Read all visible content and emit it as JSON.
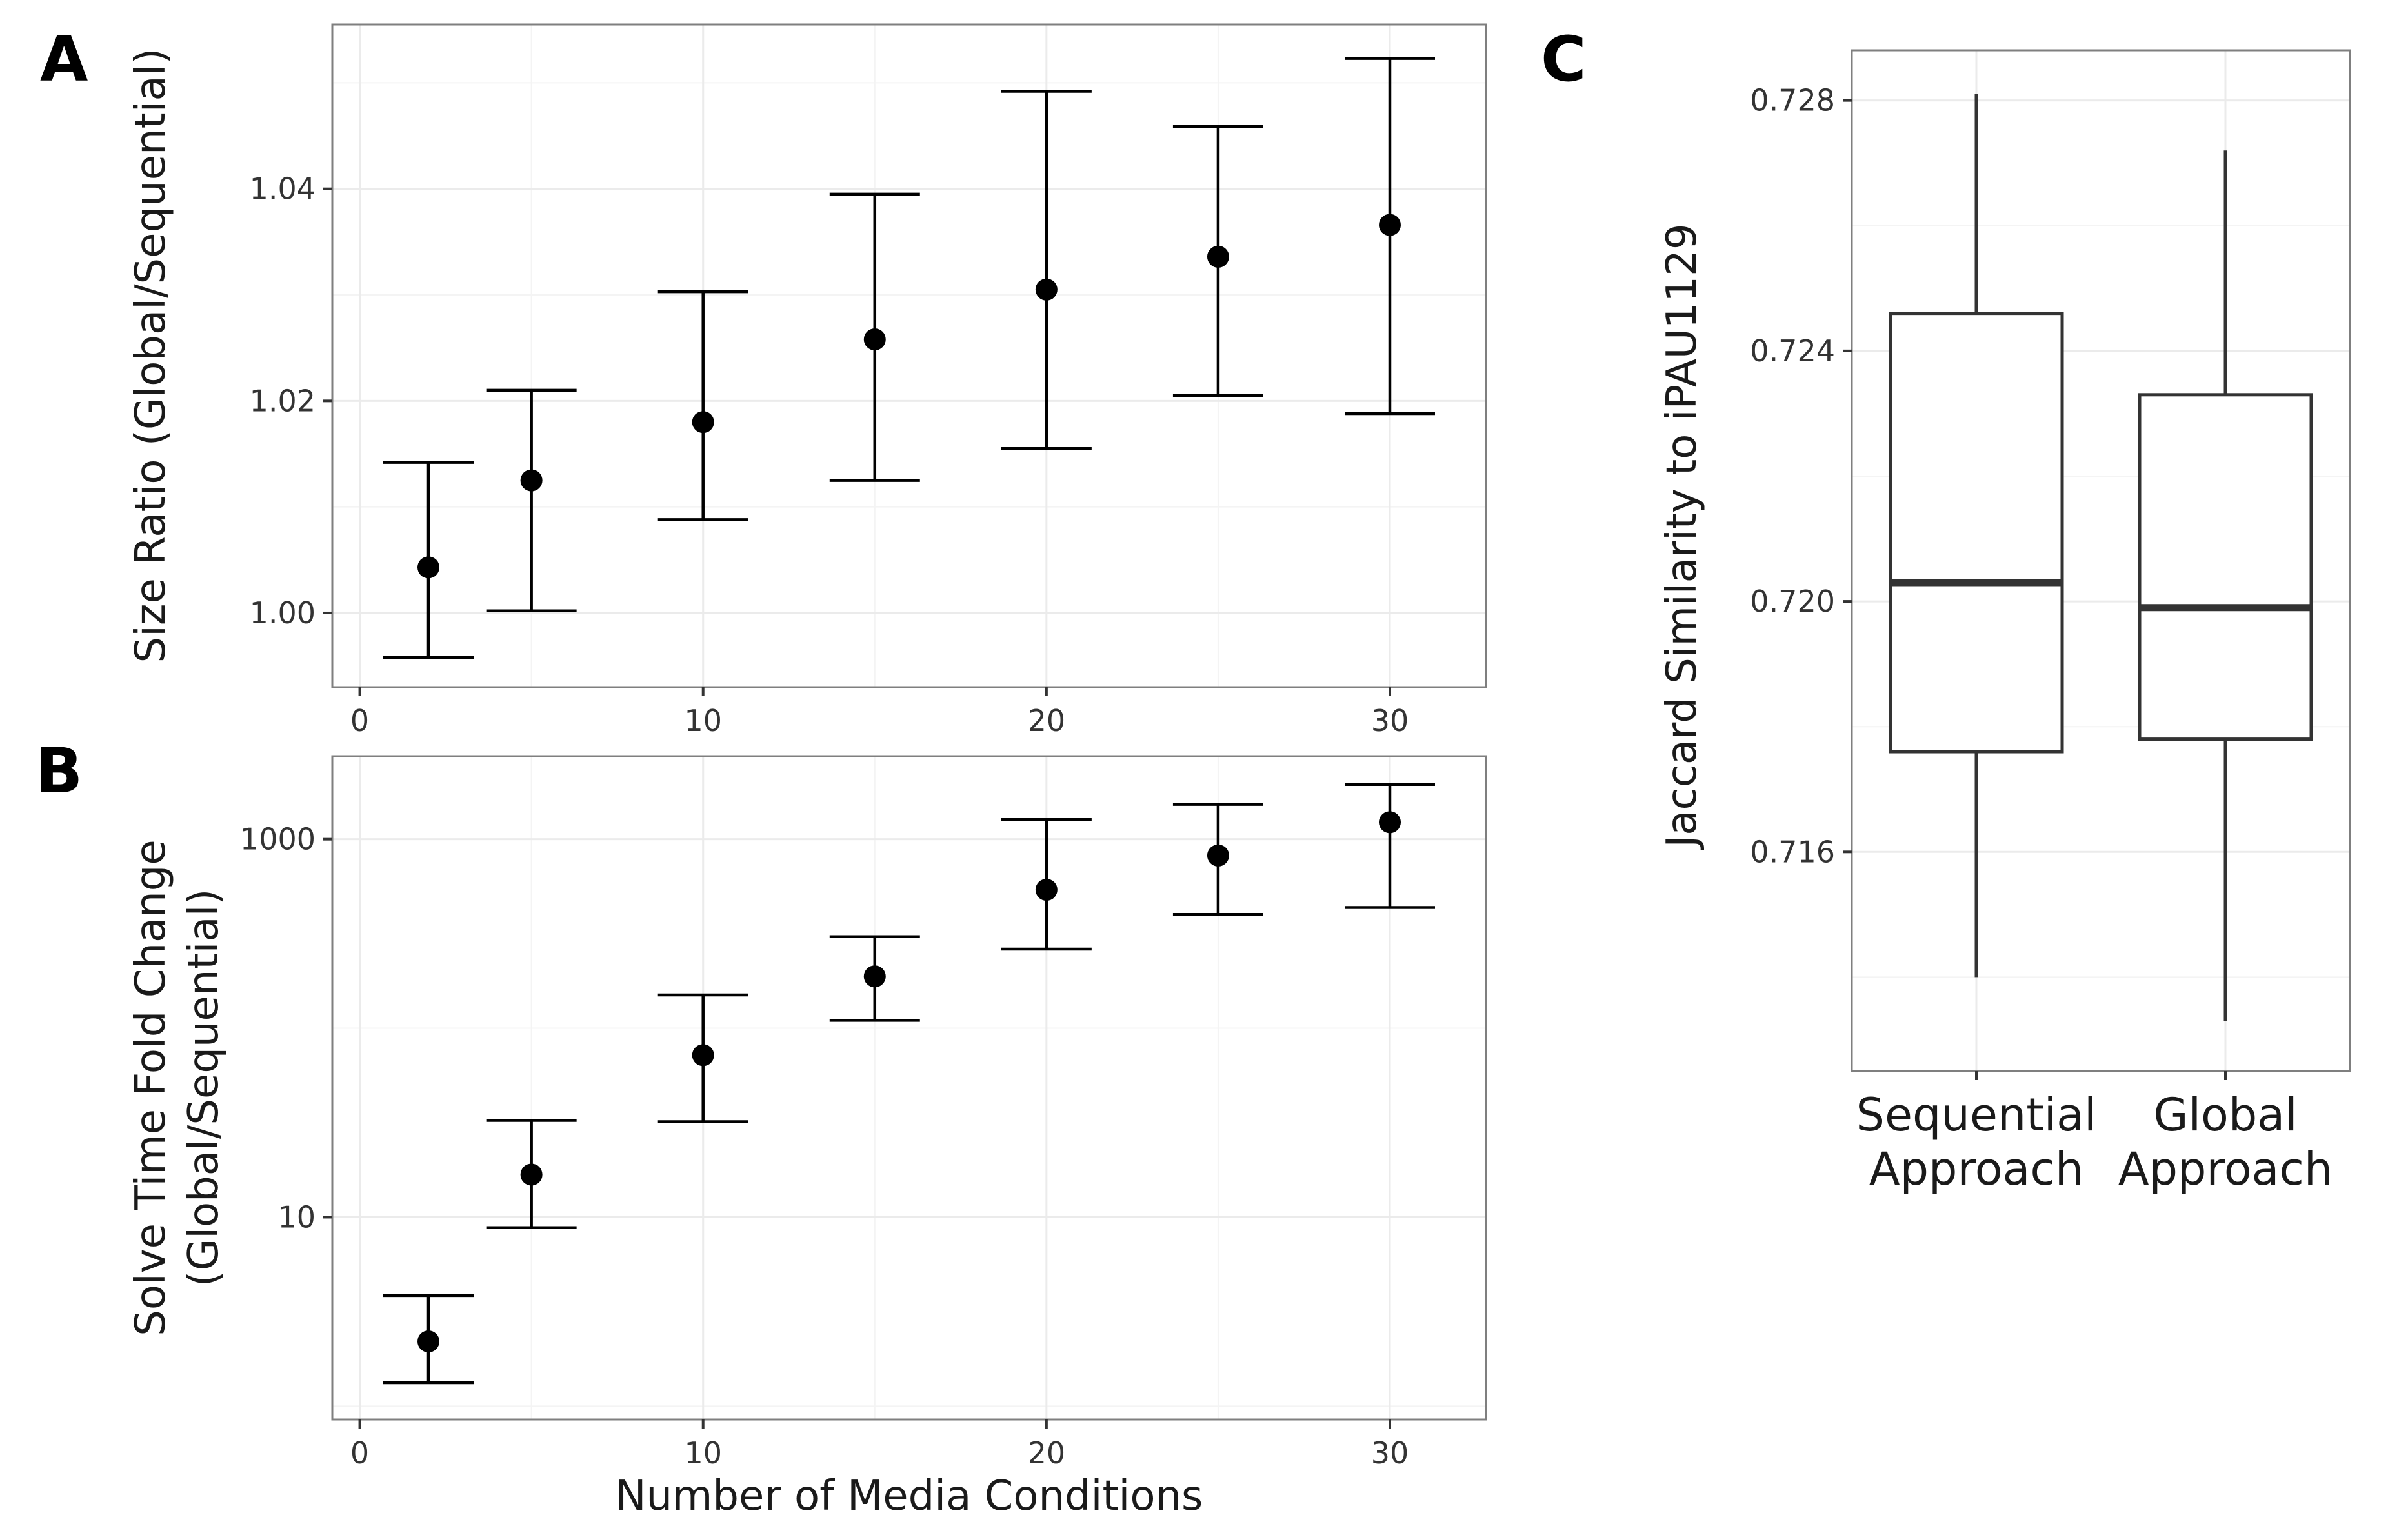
{
  "panels": {
    "a": "A",
    "b": "B",
    "c": "C"
  },
  "chart_data": [
    {
      "panel": "A",
      "type": "scatter",
      "error_bars": true,
      "xlabel": "",
      "ylabel": "Size Ratio (Global/Sequential)",
      "xlim": [
        -0.8,
        32.8
      ],
      "ylim": [
        0.993,
        1.0555
      ],
      "xticks": [
        0,
        10,
        20,
        30
      ],
      "xtick_labels": [
        "0",
        "10",
        "20",
        "30"
      ],
      "yticks": [
        1.0,
        1.02,
        1.04
      ],
      "ytick_labels": [
        "1.00",
        "1.02",
        "1.04"
      ],
      "grid": true,
      "x": [
        2,
        5,
        10,
        15,
        20,
        25,
        30
      ],
      "y": [
        1.0043,
        1.0125,
        1.018,
        1.0258,
        1.0305,
        1.0336,
        1.0366
      ],
      "ymin": [
        0.9958,
        1.0002,
        1.0088,
        1.0125,
        1.0155,
        1.0205,
        1.0188
      ],
      "ymax": [
        1.0142,
        1.021,
        1.0303,
        1.0395,
        1.0492,
        1.0459,
        1.0523
      ]
    },
    {
      "panel": "B",
      "type": "scatter",
      "error_bars": true,
      "log_y": true,
      "xlabel": "Number of Media Conditions",
      "ylabel_lines": [
        "Solve Time Fold Change",
        "(Global/Sequential)"
      ],
      "xlim": [
        -0.8,
        32.8
      ],
      "ylim": [
        0.85,
        2750
      ],
      "xticks": [
        0,
        10,
        20,
        30
      ],
      "xtick_labels": [
        "0",
        "10",
        "20",
        "30"
      ],
      "yticks": [
        10,
        1000
      ],
      "ytick_labels": [
        "10",
        "1000"
      ],
      "grid": true,
      "x": [
        2,
        5,
        10,
        15,
        20,
        25,
        30
      ],
      "y": [
        2.2,
        16.8,
        72,
        188,
        540,
        820,
        1230
      ],
      "ymin": [
        1.33,
        8.8,
        32,
        110,
        262,
        400,
        435
      ],
      "ymax": [
        3.85,
        32.5,
        150,
        305,
        1270,
        1530,
        1950
      ]
    },
    {
      "panel": "C",
      "type": "box",
      "xlabel": "",
      "ylabel": "Jaccard Similarity to iPAU1129",
      "ylim": [
        0.7125,
        0.7288
      ],
      "yticks": [
        0.716,
        0.72,
        0.724,
        0.728
      ],
      "ytick_labels": [
        "0.716",
        "0.720",
        "0.724",
        "0.728"
      ],
      "grid": true,
      "categories": [
        [
          "Sequential",
          "Approach"
        ],
        [
          "Global",
          "Approach"
        ]
      ],
      "boxes": [
        {
          "min": 0.714,
          "q1": 0.7176,
          "median": 0.7203,
          "q3": 0.7246,
          "max": 0.7281
        },
        {
          "min": 0.7133,
          "q1": 0.7178,
          "median": 0.7199,
          "q3": 0.7233,
          "max": 0.7272
        }
      ]
    }
  ]
}
